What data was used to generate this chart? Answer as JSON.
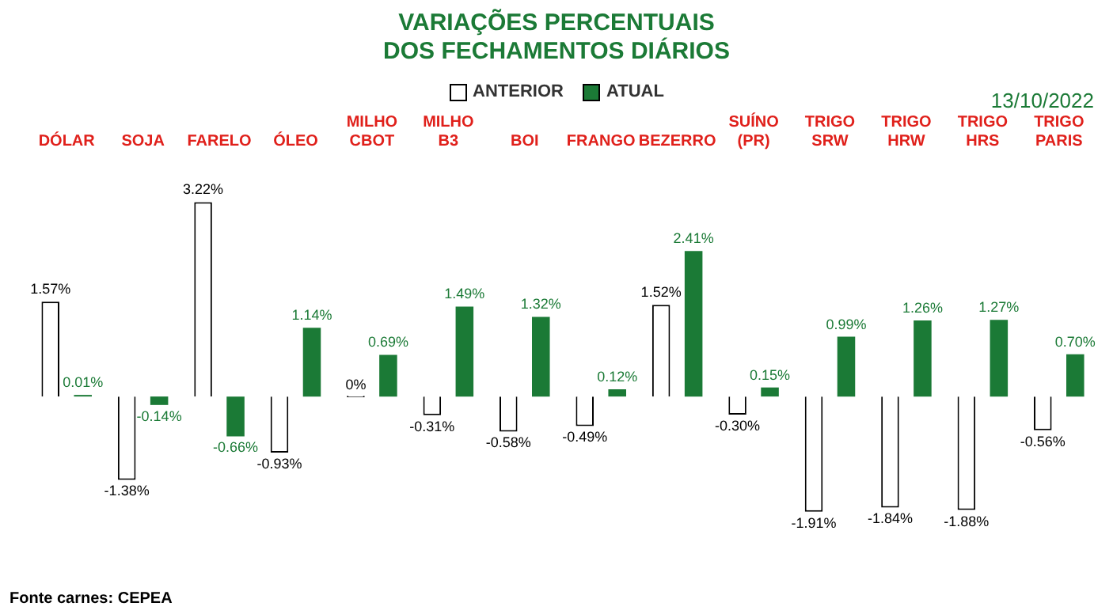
{
  "chart_data": {
    "type": "bar",
    "title": "VARIAÇÕES PERCENTUAIS\nDOS FECHAMENTOS DIÁRIOS",
    "categories": [
      "DÓLAR",
      "SOJA",
      "FARELO",
      "ÓLEO",
      "MILHO CBOT",
      "MILHO B3",
      "BOI",
      "FRANGO",
      "BEZERRO",
      "SUÍNO (PR)",
      "TRIGO SRW",
      "TRIGO HRW",
      "TRIGO HRS",
      "TRIGO PARIS"
    ],
    "series": [
      {
        "name": "ANTERIOR",
        "color": "#ffffff",
        "values": [
          1.57,
          -1.38,
          3.22,
          -0.93,
          0,
          -0.31,
          -0.58,
          -0.49,
          1.52,
          -0.3,
          -1.91,
          -1.84,
          -1.88,
          -0.56
        ],
        "value_labels": [
          "1.57%",
          "-1.38%",
          "3.22%",
          "-0.93%",
          "0%",
          "-0.31%",
          "-0.58%",
          "-0.49%",
          "1.52%",
          "-0.30%",
          "-1.91%",
          "-1.84%",
          "-1.88%",
          "-0.56%"
        ]
      },
      {
        "name": "ATUAL",
        "color": "#1b7a36",
        "values": [
          0.01,
          -0.14,
          -0.66,
          1.14,
          0.69,
          1.49,
          1.32,
          0.12,
          2.41,
          0.15,
          0.99,
          1.26,
          1.27,
          0.7
        ],
        "value_labels": [
          "0.01%",
          "-0.14%",
          "-0.66%",
          "1.14%",
          "0.69%",
          "1.49%",
          "1.32%",
          "0.12%",
          "2.41%",
          "0.15%",
          "0.99%",
          "1.26%",
          "1.27%",
          "0.70%"
        ]
      }
    ],
    "legend": "top",
    "grid": false,
    "tick_labels": "x",
    "annotations": [
      "13/10/2022",
      "Fonte carnes: CEPEA"
    ]
  }
}
